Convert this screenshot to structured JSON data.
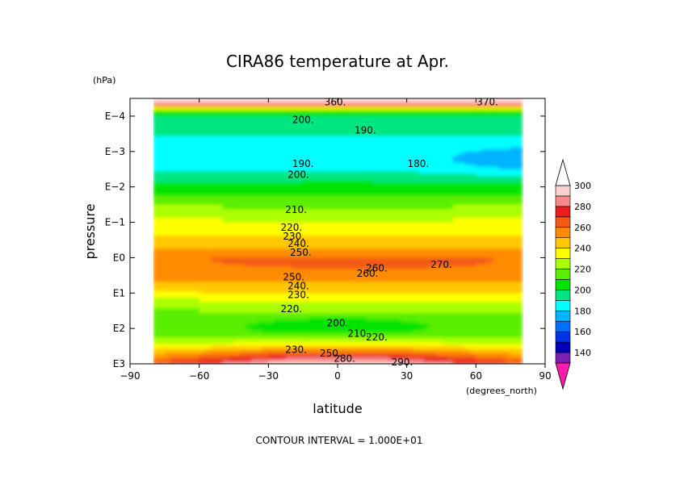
{
  "chart_data": {
    "type": "heatmap",
    "title": "CIRA86 temperature at Apr.",
    "xlabel": "latitude",
    "ylabel": "pressure",
    "x_unit": "(degrees_north)",
    "y_unit": "(hPa)",
    "x_ticks": [
      "−90",
      "−60",
      "−30",
      "0",
      "30",
      "60",
      "90"
    ],
    "x_tick_values": [
      -90,
      -60,
      -30,
      0,
      30,
      60,
      90
    ],
    "y_ticks": [
      "E−4",
      "E−3",
      "E−2",
      "E−1",
      "E0",
      "E1",
      "E2",
      "E3"
    ],
    "y_tick_exponents": [
      -4,
      -3,
      -2,
      -1,
      0,
      1,
      2,
      3
    ],
    "xlim": [
      -90,
      90
    ],
    "ylim_log10_hPa": [
      -4.5,
      3
    ],
    "data_lat_range": [
      -80,
      80
    ],
    "footnote": "CONTOUR INTERVAL = 1.000E+01",
    "colorbar": {
      "labels": [
        "300",
        "280",
        "260",
        "240",
        "220",
        "200",
        "180",
        "160",
        "140"
      ],
      "label_values": [
        300,
        280,
        260,
        240,
        220,
        200,
        180,
        160,
        140
      ],
      "bands": [
        {
          "max": 300,
          "color": "#fbd0d0"
        },
        {
          "max": 290,
          "color": "#f58a8a"
        },
        {
          "max": 280,
          "color": "#e81e1e"
        },
        {
          "max": 270,
          "color": "#f45a16"
        },
        {
          "max": 260,
          "color": "#ff8c00"
        },
        {
          "max": 250,
          "color": "#ffc800"
        },
        {
          "max": 240,
          "color": "#ffff00"
        },
        {
          "max": 230,
          "color": "#aaff00"
        },
        {
          "max": 220,
          "color": "#5aee00"
        },
        {
          "max": 210,
          "color": "#00e400"
        },
        {
          "max": 200,
          "color": "#00e680"
        },
        {
          "max": 190,
          "color": "#00ffff"
        },
        {
          "max": 180,
          "color": "#00b4ff"
        },
        {
          "max": 170,
          "color": "#0070ff"
        },
        {
          "max": 160,
          "color": "#0032e6"
        },
        {
          "max": 150,
          "color": "#0000b4"
        },
        {
          "max": 140,
          "color": "#7a20b0"
        }
      ],
      "top_cap_color": "#ffffff",
      "bottom_cap_color": "#ff1aae"
    },
    "contour_labels": [
      {
        "text": "360.",
        "lat": -1,
        "logp": -4.4
      },
      {
        "text": "370.",
        "lat": 65,
        "logp": -4.4
      },
      {
        "text": "200.",
        "lat": -15,
        "logp": -3.9
      },
      {
        "text": "190.",
        "lat": 12,
        "logp": -3.6
      },
      {
        "text": "190.",
        "lat": -15,
        "logp": -2.65
      },
      {
        "text": "180.",
        "lat": 35,
        "logp": -2.65
      },
      {
        "text": "200.",
        "lat": -17,
        "logp": -2.35
      },
      {
        "text": "210.",
        "lat": -18,
        "logp": -1.35
      },
      {
        "text": "220.",
        "lat": -20,
        "logp": -0.85
      },
      {
        "text": "230.",
        "lat": -19,
        "logp": -0.6
      },
      {
        "text": "240.",
        "lat": -17,
        "logp": -0.4
      },
      {
        "text": "250.",
        "lat": -16,
        "logp": -0.15
      },
      {
        "text": "260.",
        "lat": 17,
        "logp": 0.3
      },
      {
        "text": "270.",
        "lat": 45,
        "logp": 0.2
      },
      {
        "text": "260.",
        "lat": 13,
        "logp": 0.45
      },
      {
        "text": "250.",
        "lat": -19,
        "logp": 0.55
      },
      {
        "text": "240.",
        "lat": -17,
        "logp": 0.8
      },
      {
        "text": "230.",
        "lat": -17,
        "logp": 1.05
      },
      {
        "text": "220.",
        "lat": -20,
        "logp": 1.45
      },
      {
        "text": "200.",
        "lat": 0,
        "logp": 1.85
      },
      {
        "text": "210.",
        "lat": 9,
        "logp": 2.15
      },
      {
        "text": "220.",
        "lat": 17,
        "logp": 2.25
      },
      {
        "text": "230.",
        "lat": -18,
        "logp": 2.6
      },
      {
        "text": "250.",
        "lat": -3,
        "logp": 2.7
      },
      {
        "text": "280.",
        "lat": 3,
        "logp": 2.85
      },
      {
        "text": "290.",
        "lat": 28,
        "logp": 2.95
      }
    ]
  }
}
